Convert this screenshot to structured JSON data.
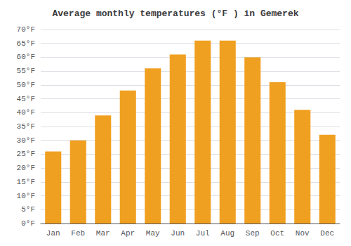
{
  "chart_data": {
    "type": "bar",
    "title": "Average monthly temperatures (°F ) in Gemerek",
    "categories": [
      "Jan",
      "Feb",
      "Mar",
      "Apr",
      "May",
      "Jun",
      "Jul",
      "Aug",
      "Sep",
      "Oct",
      "Nov",
      "Dec"
    ],
    "values": [
      26,
      30,
      39,
      48,
      56,
      61,
      66,
      66,
      60,
      51,
      41,
      32
    ],
    "color": "#F0A020",
    "ylim": [
      0,
      70
    ],
    "yticks": [
      {
        "value": 0,
        "label": "0°F"
      },
      {
        "value": 5,
        "label": "5°F"
      },
      {
        "value": 10,
        "label": "10°F"
      },
      {
        "value": 15,
        "label": "15°F"
      },
      {
        "value": 20,
        "label": "20°F"
      },
      {
        "value": 25,
        "label": "25°F"
      },
      {
        "value": 30,
        "label": "30°F"
      },
      {
        "value": 35,
        "label": "35°F"
      },
      {
        "value": 40,
        "label": "40°F"
      },
      {
        "value": 45,
        "label": "45°F"
      },
      {
        "value": 50,
        "label": "50°F"
      },
      {
        "value": 55,
        "label": "55°F"
      },
      {
        "value": 60,
        "label": "60°F"
      },
      {
        "value": 65,
        "label": "65°F"
      },
      {
        "value": 70,
        "label": "70°F"
      }
    ],
    "grid": true
  }
}
